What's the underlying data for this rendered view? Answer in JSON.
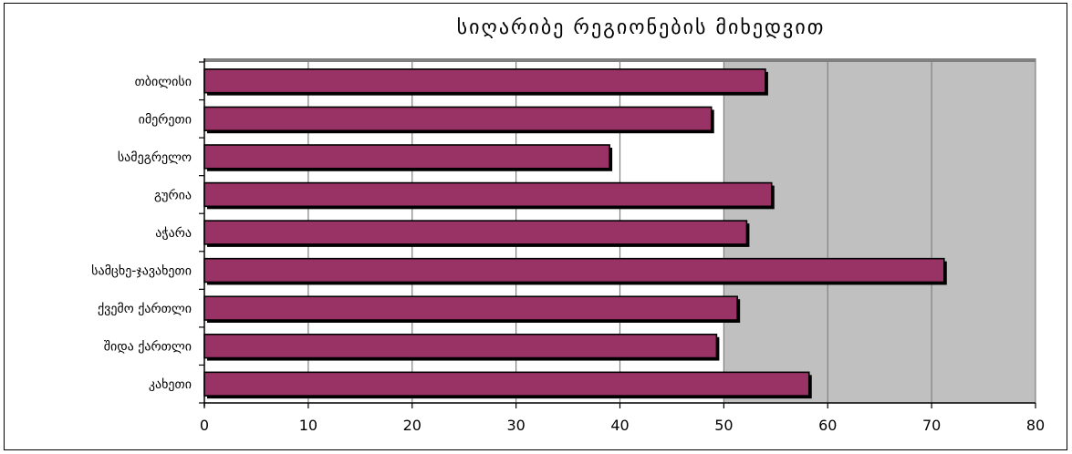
{
  "chart_data": {
    "type": "bar",
    "orientation": "horizontal",
    "title": "სიღარიბე რეგიონების მიხედვით",
    "categories": [
      "თბილისი",
      "იმერეთი",
      "სამეგრელო",
      "გურია",
      "აჭარა",
      "სამცხე-ჯავახეთი",
      "ქვემო  ქართლი",
      "შიდა  ქართლი",
      "კახეთი"
    ],
    "values": [
      54,
      48.8,
      39,
      54.6,
      52.2,
      71.2,
      51.3,
      49.3,
      58.2
    ],
    "xlabel": "",
    "ylabel": "",
    "xlim": [
      0,
      80
    ],
    "xticks": [
      0,
      10,
      20,
      30,
      40,
      50,
      60,
      70,
      80
    ],
    "grid": true,
    "legend": "none",
    "colors": {
      "bar": "#993366",
      "bar_outline": "#000000",
      "plot_background": "#c0c0c0",
      "gridline": "#808080"
    }
  }
}
